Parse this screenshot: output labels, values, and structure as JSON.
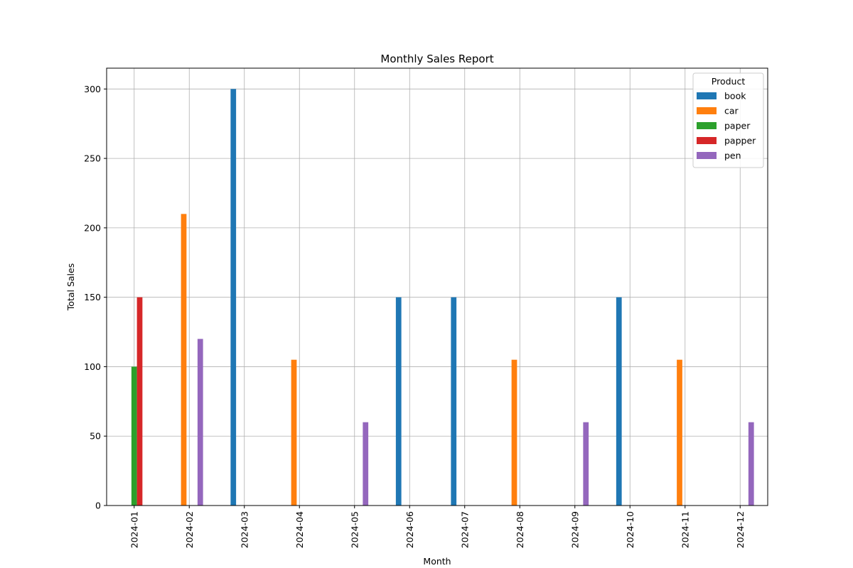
{
  "chart_data": {
    "type": "bar",
    "title": "Monthly Sales Report",
    "xlabel": "Month",
    "ylabel": "Total Sales",
    "categories": [
      "2024-01",
      "2024-02",
      "2024-03",
      "2024-04",
      "2024-05",
      "2024-06",
      "2024-07",
      "2024-08",
      "2024-09",
      "2024-10",
      "2024-11",
      "2024-12"
    ],
    "ylim": [
      0,
      315
    ],
    "yticks": [
      0,
      50,
      100,
      150,
      200,
      250,
      300
    ],
    "grid": true,
    "legend": {
      "title": "Product",
      "placement": "top-right"
    },
    "series": [
      {
        "name": "book",
        "color": "#1f77b4",
        "values": [
          0,
          0,
          300,
          0,
          0,
          150,
          150,
          0,
          0,
          150,
          0,
          0
        ]
      },
      {
        "name": "car",
        "color": "#ff7f0e",
        "values": [
          0,
          210,
          0,
          105,
          0,
          0,
          0,
          105,
          0,
          0,
          105,
          0
        ]
      },
      {
        "name": "paper",
        "color": "#2ca02c",
        "values": [
          100,
          0,
          0,
          0,
          0,
          0,
          0,
          0,
          0,
          0,
          0,
          0
        ]
      },
      {
        "name": "papper",
        "color": "#d62728",
        "values": [
          150,
          0,
          0,
          0,
          0,
          0,
          0,
          0,
          0,
          0,
          0,
          0
        ]
      },
      {
        "name": "pen",
        "color": "#9467bd",
        "values": [
          0,
          120,
          0,
          0,
          60,
          0,
          0,
          0,
          60,
          0,
          0,
          60
        ]
      }
    ]
  }
}
